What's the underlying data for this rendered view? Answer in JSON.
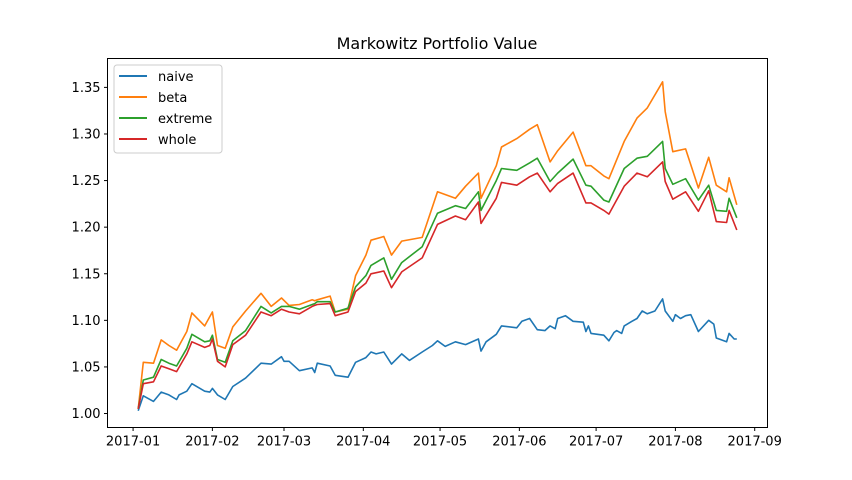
{
  "chart_data": {
    "type": "line",
    "title": "Markowitz Portfolio Value",
    "xlabel": "",
    "ylabel": "",
    "xlim": [
      "2016-12-22",
      "2017-09-06"
    ],
    "ylim": [
      0.985,
      1.381
    ],
    "x_ticks": [
      "2017-01",
      "2017-02",
      "2017-03",
      "2017-04",
      "2017-05",
      "2017-06",
      "2017-07",
      "2017-08",
      "2017-09"
    ],
    "y_ticks": [
      "1.00",
      "1.05",
      "1.10",
      "1.15",
      "1.20",
      "1.25",
      "1.30",
      "1.35"
    ],
    "grid": false,
    "legend_position": "top-left",
    "x": [
      "2017-01-03",
      "2017-01-05",
      "2017-01-09",
      "2017-01-12",
      "2017-01-15",
      "2017-01-18",
      "2017-01-22",
      "2017-01-24",
      "2017-01-29",
      "2017-01-31",
      "2017-02-01",
      "2017-02-03",
      "2017-02-06",
      "2017-02-09",
      "2017-02-14",
      "2017-02-20",
      "2017-02-24",
      "2017-02-28",
      "2017-03-03",
      "2017-03-07",
      "2017-03-12",
      "2017-03-13",
      "2017-03-14",
      "2017-03-19",
      "2017-03-21",
      "2017-03-26",
      "2017-03-29",
      "2017-04-02",
      "2017-04-04",
      "2017-04-09",
      "2017-04-12",
      "2017-04-16",
      "2017-04-24",
      "2017-04-30",
      "2017-05-07",
      "2017-05-11",
      "2017-05-16",
      "2017-05-17",
      "2017-05-23",
      "2017-05-25",
      "2017-05-31",
      "2017-06-05",
      "2017-06-08",
      "2017-06-13",
      "2017-06-16",
      "2017-06-22",
      "2017-06-27",
      "2017-06-29",
      "2017-07-04",
      "2017-07-06",
      "2017-07-12",
      "2017-07-17",
      "2017-07-21",
      "2017-07-27",
      "2017-07-28",
      "2017-07-31",
      "2017-08-05",
      "2017-08-10",
      "2017-08-14",
      "2017-08-17",
      "2017-08-21",
      "2017-08-22",
      "2017-08-25"
    ],
    "series": [
      {
        "name": "naive",
        "color": "#1f77b4",
        "x": [
          "2017-01-03",
          "2017-01-05",
          "2017-01-09",
          "2017-01-12",
          "2017-01-15",
          "2017-01-18",
          "2017-01-19",
          "2017-01-22",
          "2017-01-24",
          "2017-01-29",
          "2017-01-31",
          "2017-02-01",
          "2017-02-03",
          "2017-02-06",
          "2017-02-09",
          "2017-02-14",
          "2017-02-20",
          "2017-02-24",
          "2017-02-28",
          "2017-03-01",
          "2017-03-03",
          "2017-03-07",
          "2017-03-12",
          "2017-03-13",
          "2017-03-14",
          "2017-03-19",
          "2017-03-21",
          "2017-03-26",
          "2017-03-29",
          "2017-04-02",
          "2017-04-04",
          "2017-04-06",
          "2017-04-09",
          "2017-04-12",
          "2017-04-16",
          "2017-04-19",
          "2017-04-24",
          "2017-04-28",
          "2017-04-30",
          "2017-05-03",
          "2017-05-07",
          "2017-05-11",
          "2017-05-16",
          "2017-05-17",
          "2017-05-19",
          "2017-05-23",
          "2017-05-25",
          "2017-05-31",
          "2017-06-02",
          "2017-06-05",
          "2017-06-08",
          "2017-06-11",
          "2017-06-13",
          "2017-06-15",
          "2017-06-16",
          "2017-06-19",
          "2017-06-22",
          "2017-06-26",
          "2017-06-27",
          "2017-06-28",
          "2017-06-29",
          "2017-07-04",
          "2017-07-06",
          "2017-07-08",
          "2017-07-09",
          "2017-07-11",
          "2017-07-12",
          "2017-07-15",
          "2017-07-17",
          "2017-07-19",
          "2017-07-21",
          "2017-07-24",
          "2017-07-27",
          "2017-07-28",
          "2017-07-31",
          "2017-08-01",
          "2017-08-03",
          "2017-08-05",
          "2017-08-07",
          "2017-08-10",
          "2017-08-14",
          "2017-08-16",
          "2017-08-17",
          "2017-08-21",
          "2017-08-22",
          "2017-08-24",
          "2017-08-25"
        ],
        "values": [
          1.003,
          1.019,
          1.013,
          1.023,
          1.02,
          1.015,
          1.02,
          1.024,
          1.032,
          1.024,
          1.023,
          1.027,
          1.02,
          1.015,
          1.029,
          1.038,
          1.054,
          1.053,
          1.061,
          1.056,
          1.056,
          1.046,
          1.049,
          1.044,
          1.054,
          1.051,
          1.041,
          1.039,
          1.055,
          1.06,
          1.066,
          1.064,
          1.066,
          1.053,
          1.064,
          1.057,
          1.066,
          1.073,
          1.078,
          1.072,
          1.077,
          1.074,
          1.08,
          1.067,
          1.077,
          1.085,
          1.094,
          1.092,
          1.099,
          1.102,
          1.09,
          1.089,
          1.094,
          1.091,
          1.102,
          1.105,
          1.099,
          1.098,
          1.088,
          1.094,
          1.086,
          1.084,
          1.078,
          1.087,
          1.089,
          1.086,
          1.094,
          1.099,
          1.102,
          1.11,
          1.107,
          1.11,
          1.123,
          1.11,
          1.099,
          1.106,
          1.102,
          1.105,
          1.106,
          1.088,
          1.1,
          1.096,
          1.081,
          1.077,
          1.086,
          1.08,
          1.08
        ]
      },
      {
        "name": "beta",
        "color": "#ff7f0e",
        "values": [
          1.005,
          1.055,
          1.054,
          1.079,
          1.073,
          1.068,
          1.088,
          1.108,
          1.094,
          1.104,
          1.109,
          1.073,
          1.07,
          1.093,
          1.11,
          1.129,
          1.115,
          1.124,
          1.116,
          1.117,
          1.122,
          1.121,
          1.122,
          1.126,
          1.109,
          1.112,
          1.148,
          1.17,
          1.186,
          1.19,
          1.17,
          1.185,
          1.189,
          1.238,
          1.231,
          1.244,
          1.258,
          1.231,
          1.266,
          1.286,
          1.295,
          1.305,
          1.31,
          1.27,
          1.282,
          1.302,
          1.266,
          1.266,
          1.255,
          1.252,
          1.292,
          1.317,
          1.328,
          1.356,
          1.324,
          1.281,
          1.284,
          1.242,
          1.275,
          1.245,
          1.238,
          1.253,
          1.224
        ]
      },
      {
        "name": "extreme",
        "color": "#2ca02c",
        "values": [
          1.005,
          1.036,
          1.039,
          1.058,
          1.054,
          1.051,
          1.07,
          1.085,
          1.077,
          1.078,
          1.084,
          1.058,
          1.055,
          1.078,
          1.089,
          1.115,
          1.108,
          1.115,
          1.115,
          1.112,
          1.117,
          1.118,
          1.12,
          1.12,
          1.109,
          1.113,
          1.136,
          1.148,
          1.159,
          1.167,
          1.144,
          1.162,
          1.179,
          1.215,
          1.223,
          1.22,
          1.238,
          1.218,
          1.25,
          1.263,
          1.261,
          1.269,
          1.274,
          1.249,
          1.258,
          1.273,
          1.245,
          1.244,
          1.229,
          1.227,
          1.263,
          1.274,
          1.276,
          1.292,
          1.263,
          1.246,
          1.252,
          1.229,
          1.245,
          1.218,
          1.217,
          1.231,
          1.21
        ]
      },
      {
        "name": "whole",
        "color": "#d62728",
        "values": [
          1.005,
          1.032,
          1.034,
          1.051,
          1.048,
          1.045,
          1.064,
          1.077,
          1.071,
          1.073,
          1.08,
          1.056,
          1.05,
          1.074,
          1.084,
          1.109,
          1.105,
          1.112,
          1.109,
          1.107,
          1.115,
          1.116,
          1.117,
          1.118,
          1.105,
          1.109,
          1.131,
          1.14,
          1.15,
          1.153,
          1.135,
          1.152,
          1.167,
          1.203,
          1.212,
          1.208,
          1.227,
          1.204,
          1.231,
          1.248,
          1.245,
          1.254,
          1.258,
          1.238,
          1.247,
          1.258,
          1.226,
          1.226,
          1.218,
          1.214,
          1.244,
          1.258,
          1.254,
          1.27,
          1.249,
          1.23,
          1.238,
          1.217,
          1.239,
          1.206,
          1.205,
          1.218,
          1.197
        ]
      }
    ]
  }
}
